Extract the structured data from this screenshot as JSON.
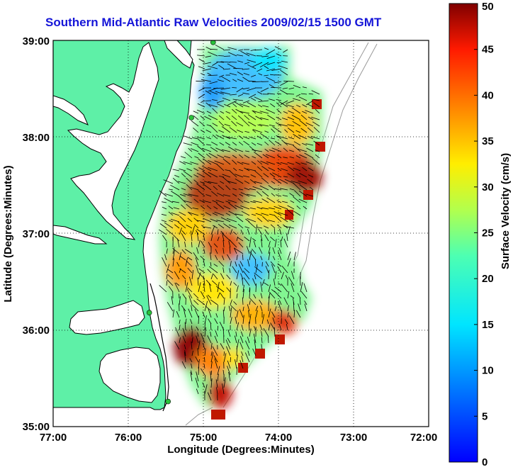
{
  "title": "Southern Mid-Atlantic Raw Velocities 2009/02/15 1500 GMT",
  "axes": {
    "xlabel": "Longitude (Degrees:Minutes)",
    "ylabel": "Latitude (Degrees:Minutes)",
    "x_ticks": [
      "77:00",
      "76:00",
      "75:00",
      "74:00",
      "73:00",
      "72:00"
    ],
    "y_ticks": [
      "39:00",
      "38:00",
      "37:00",
      "36:00",
      "35:00"
    ],
    "x_range": [
      -77,
      -72
    ],
    "y_range": [
      35,
      39
    ],
    "grid": "dotted"
  },
  "colorbar": {
    "label": "Surface Velocity (cm/s)",
    "ticks": [
      "0",
      "5",
      "10",
      "15",
      "20",
      "25",
      "30",
      "35",
      "40",
      "45",
      "50"
    ],
    "range": [
      0,
      50
    ],
    "colormap": "jet"
  },
  "colors": {
    "land": "#5ef0a7",
    "water": "#ffffff",
    "coastline": "#000000",
    "bathymetry": "#999999",
    "stations": "#29c23a",
    "vectors": "#000000"
  },
  "stations": [
    {
      "lon": -74.87,
      "lat": 38.98
    },
    {
      "lon": -75.16,
      "lat": 38.2
    },
    {
      "lon": -75.72,
      "lat": 36.18
    },
    {
      "lon": -75.47,
      "lat": 35.26
    }
  ]
}
